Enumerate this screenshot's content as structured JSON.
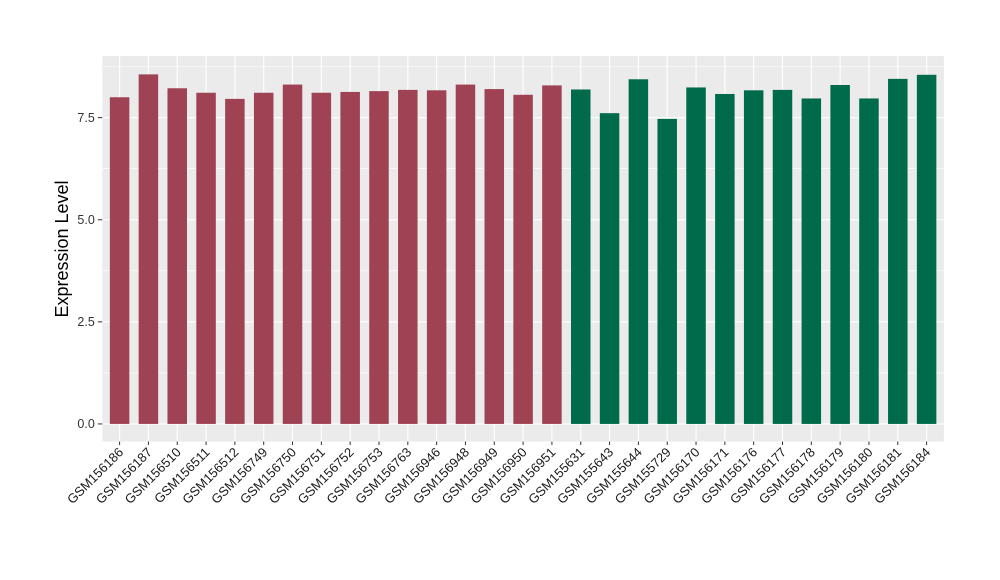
{
  "figure": {
    "background": "#FFFFFF",
    "panel_background": "#EBEBEB",
    "gridline_color": "#FFFFFF",
    "tick_mark_color": "#333333",
    "axis_text_color": "#333333",
    "x_label_color": "#1a1a1a"
  },
  "chart_data": {
    "type": "bar",
    "title": "",
    "xlabel": "",
    "ylabel": "Expression Level",
    "ylim": [
      -0.43,
      9.01
    ],
    "yticks": [
      0.0,
      2.5,
      5.0,
      7.5
    ],
    "ytick_labels": [
      "0.0",
      "2.5",
      "5.0",
      "7.5"
    ],
    "minor_yticks": [
      1.25,
      3.75,
      6.25,
      8.75
    ],
    "grid": true,
    "legend_position": "none",
    "x_label_rotation_deg": 45,
    "categories": [
      "GSM156186",
      "GSM156187",
      "GSM156510",
      "GSM156511",
      "GSM156512",
      "GSM156749",
      "GSM156750",
      "GSM156751",
      "GSM156752",
      "GSM156753",
      "GSM156763",
      "GSM156946",
      "GSM156948",
      "GSM156949",
      "GSM156950",
      "GSM156951",
      "GSM155631",
      "GSM155643",
      "GSM155644",
      "GSM155729",
      "GSM156170",
      "GSM156171",
      "GSM156176",
      "GSM156177",
      "GSM156178",
      "GSM156179",
      "GSM156180",
      "GSM156181",
      "GSM156184"
    ],
    "values": [
      8.0,
      8.56,
      8.22,
      8.11,
      7.96,
      8.11,
      8.31,
      8.11,
      8.13,
      8.15,
      8.18,
      8.17,
      8.31,
      8.2,
      8.06,
      8.29,
      8.19,
      7.61,
      8.44,
      7.47,
      8.24,
      8.08,
      8.17,
      8.18,
      7.97,
      8.3,
      7.97,
      8.45,
      8.55
    ],
    "series": [
      {
        "name": "maroon-group",
        "color": "#9E4254",
        "category_count": 16
      },
      {
        "name": "green-group",
        "color": "#006B4A",
        "category_count": 13
      }
    ]
  }
}
